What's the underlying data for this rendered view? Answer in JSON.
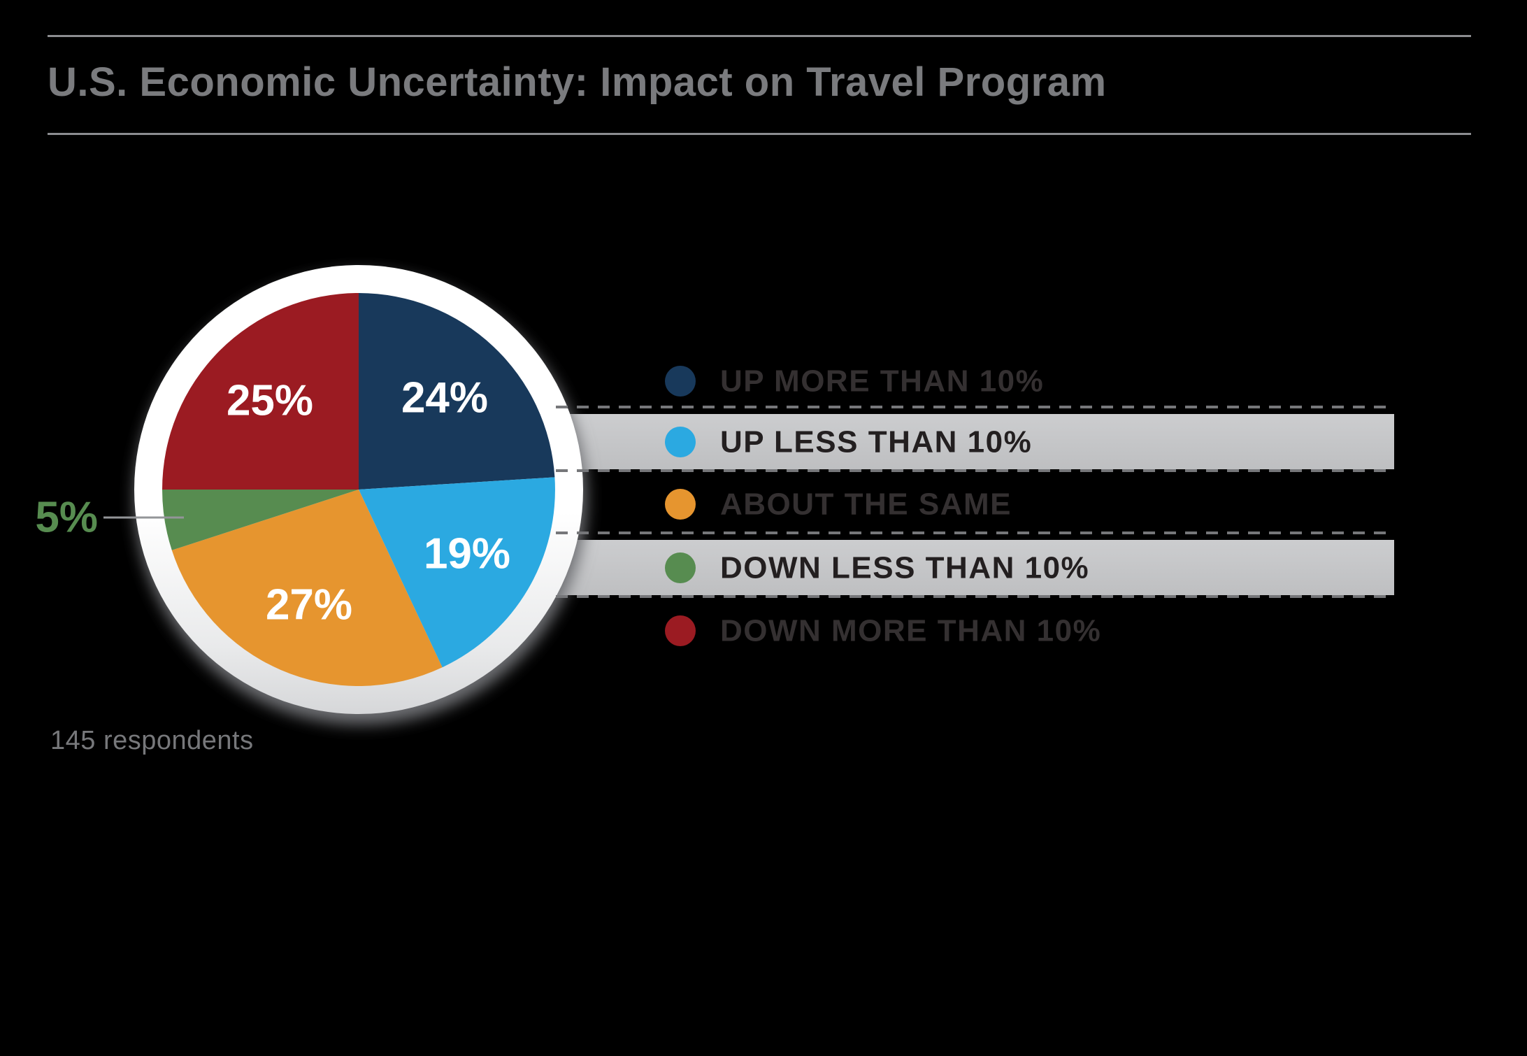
{
  "chart_data": {
    "type": "pie",
    "title": "U.S. Economic Uncertainty: Impact on Travel Program",
    "note": "145 respondents",
    "unit": "percent",
    "total": 100,
    "start_angle_deg": 0,
    "direction": "clockwise",
    "legend_position": "right",
    "slices": [
      {
        "label": "UP MORE THAN 10%",
        "value": 24,
        "color": "#18395B",
        "highlighted": false
      },
      {
        "label": "UP LESS THAN 10%",
        "value": 19,
        "color": "#2BA9E1",
        "highlighted": true
      },
      {
        "label": "ABOUT THE SAME",
        "value": 27,
        "color": "#E6952F",
        "highlighted": false
      },
      {
        "label": "DOWN LESS THAN 10%",
        "value": 5,
        "color": "#578C50",
        "highlighted": true
      },
      {
        "label": "DOWN MORE THAN 10%",
        "value": 25,
        "color": "#9B1B22",
        "highlighted": false
      }
    ],
    "slice_label_format": "{value}%",
    "style": {
      "background": "#000000",
      "title_color": "#7A7B7E",
      "rule_color": "#8C8D90",
      "note_color": "#77787B",
      "slice_label_color": "#FFFFFF",
      "ring_color": "#FFFFFF",
      "legend_text_color": "#231F20",
      "legend_text_color_dim": "#343031",
      "highlight_bar_color": "#C6C7C9",
      "dash_color": "#76777A",
      "leader_line_color": "#939598"
    }
  }
}
